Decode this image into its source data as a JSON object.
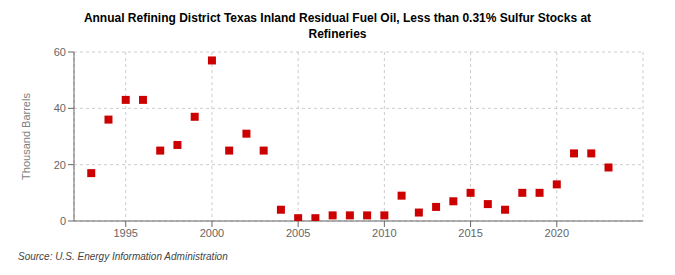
{
  "chart_data": {
    "type": "scatter",
    "title": "Annual Refining District Texas Inland Residual Fuel Oil, Less than 0.31% Sulfur Stocks at\nRefineries",
    "ylabel": "Thousand Barrels",
    "source": "Source: U.S. Energy Information Administration",
    "x": [
      1993,
      1994,
      1995,
      1996,
      1997,
      1998,
      1999,
      2000,
      2001,
      2002,
      2003,
      2004,
      2005,
      2006,
      2007,
      2008,
      2009,
      2010,
      2011,
      2012,
      2013,
      2014,
      2015,
      2016,
      2017,
      2018,
      2019,
      2020,
      2021,
      2022,
      2023
    ],
    "values": [
      17,
      36,
      43,
      43,
      25,
      27,
      37,
      57,
      25,
      31,
      25,
      4,
      1,
      1,
      2,
      2,
      2,
      2,
      9,
      3,
      5,
      7,
      10,
      6,
      4,
      10,
      10,
      13,
      24,
      24,
      19
    ],
    "color": "#cc0000",
    "marker": "square",
    "xlim": [
      1992,
      2025
    ],
    "ylim": [
      0,
      60
    ],
    "xticks": [
      1995,
      2000,
      2005,
      2010,
      2015,
      2020
    ],
    "yticks": [
      0,
      20,
      40,
      60
    ],
    "grid": true
  }
}
